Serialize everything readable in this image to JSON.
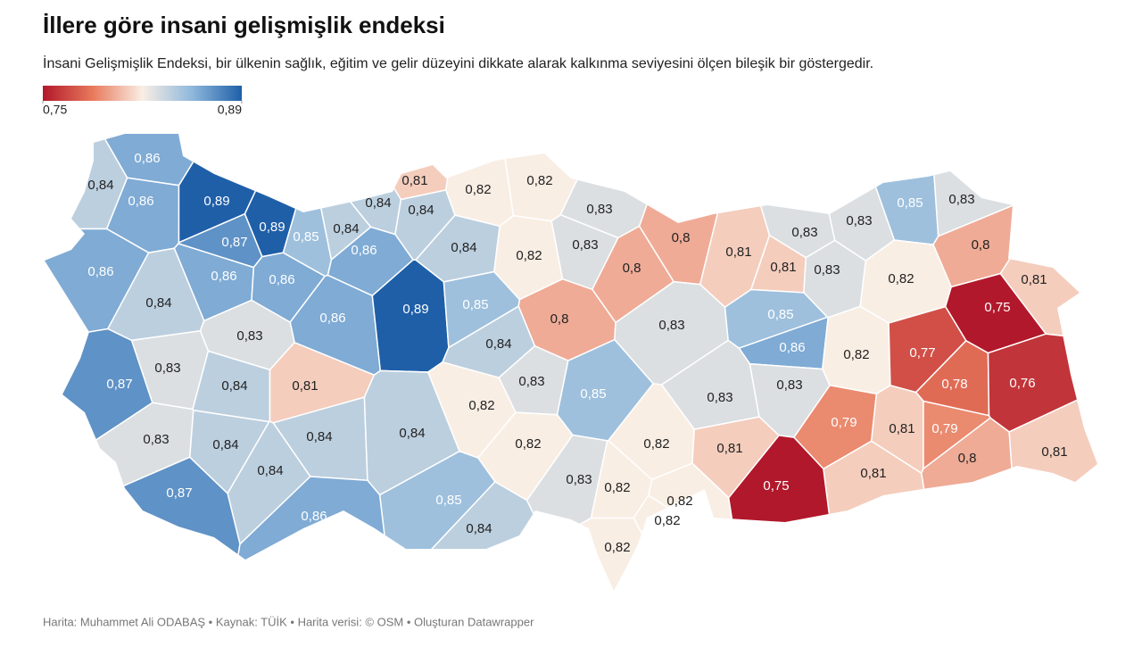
{
  "chart_data": {
    "type": "choropleth",
    "title": "İllere göre insani gelişmişlik endeksi",
    "subtitle": "İnsani Gelişmişlik Endeksi, bir ülkenin sağlık, eğitim ve gelir düzeyini dikkate alarak kalkınma seviyesini ölçen bileşik bir göstergedir.",
    "source": "Harita: Muhammet Ali ODABAŞ • Kaynak: TÜİK • Harita verisi: © OSM  • Oluşturan Datawrapper",
    "clim": [
      0.75,
      0.89
    ],
    "cticks": [
      {
        "value": 0.75,
        "label": "0,75"
      },
      {
        "value": 0.89,
        "label": "0,89"
      }
    ],
    "colors": [
      "#b2182b",
      "#e8795c",
      "#f9eee4",
      "#8fb8dc",
      "#1f5fa8"
    ],
    "values": [
      0.86,
      0.84,
      0.86,
      0.89,
      0.89,
      0.87,
      0.85,
      0.84,
      0.84,
      0.84,
      0.81,
      0.82,
      0.82,
      0.83,
      0.86,
      0.84,
      0.82,
      0.83,
      0.8,
      0.8,
      0.81,
      0.81,
      0.83,
      0.83,
      0.83,
      0.85,
      0.83,
      0.8,
      0.82,
      0.81,
      0.75,
      0.86,
      0.86,
      0.86,
      0.84,
      0.86,
      0.89,
      0.85,
      0.8,
      0.83,
      0.85,
      0.86,
      0.82,
      0.77,
      0.78,
      0.76,
      0.83,
      0.83,
      0.87,
      0.84,
      0.81,
      0.84,
      0.83,
      0.85,
      0.83,
      0.83,
      0.82,
      0.79,
      0.81,
      0.79,
      0.83,
      0.84,
      0.84,
      0.84,
      0.82,
      0.82,
      0.81,
      0.81,
      0.8,
      0.81,
      0.84,
      0.87,
      0.86,
      0.85,
      0.84,
      0.83,
      0.82,
      0.82,
      0.82,
      0.75,
      0.82
    ],
    "value_labels": [
      "0,86",
      "0,84",
      "0,86",
      "0,89",
      "0,89",
      "0,87",
      "0,85",
      "0,84",
      "0,84",
      "0,84",
      "0,81",
      "0,82",
      "0,82",
      "0,83",
      "0,86",
      "0,84",
      "0,82",
      "0,83",
      "0,8",
      "0,8",
      "0,81",
      "0,81",
      "0,83",
      "0,83",
      "0,83",
      "0,85",
      "0,83",
      "0,8",
      "0,82",
      "0,81",
      "0,75",
      "0,86",
      "0,86",
      "0,86",
      "0,84",
      "0,86",
      "0,89",
      "0,85",
      "0,8",
      "0,83",
      "0,85",
      "0,86",
      "0,82",
      "0,77",
      "0,78",
      "0,76",
      "0,83",
      "0,83",
      "0,87",
      "0,84",
      "0,81",
      "0,84",
      "0,83",
      "0,85",
      "0,83",
      "0,83",
      "0,82",
      "0,79",
      "0,81",
      "0,79",
      "0,83",
      "0,84",
      "0,84",
      "0,84",
      "0,82",
      "0,82",
      "0,81",
      "0,81",
      "0,8",
      "0,81",
      "0,84",
      "0,87",
      "0,86",
      "0,85",
      "0,84",
      "0,83",
      "0,82",
      "0,82",
      "0,82",
      "0,75",
      "0,82"
    ]
  }
}
